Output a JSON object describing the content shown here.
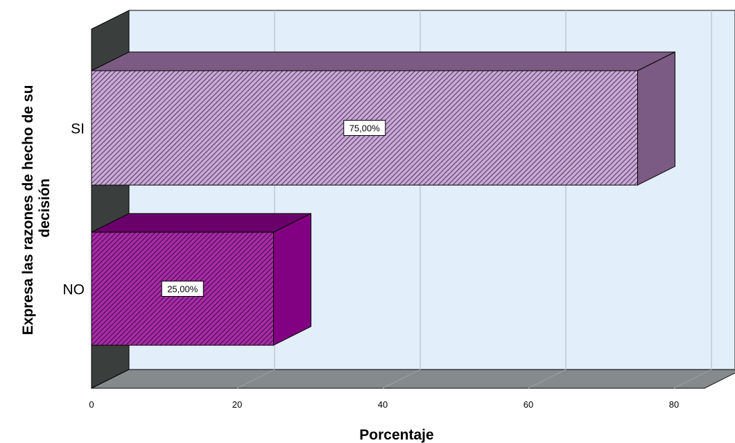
{
  "chart_data": {
    "type": "bar",
    "orientation": "horizontal",
    "style": "3d",
    "xlabel": "Porcentaje",
    "ylabel_lines": [
      "Expresa las razones de hecho de su",
      "decisión"
    ],
    "xlim": [
      0,
      80
    ],
    "xticks": [
      "0",
      "20",
      "40",
      "60",
      "80"
    ],
    "grid": true,
    "categories": [
      "SI",
      "NO"
    ],
    "values": [
      75,
      25
    ],
    "data_labels": [
      "75,00%",
      "25,00%"
    ],
    "colors": {
      "SI": {
        "front": "#c9a7d6",
        "top": "#7b5b84",
        "side": "#7b5b84"
      },
      "NO": {
        "front": "#a62ba6",
        "top": "#6a006a",
        "side": "#820082"
      },
      "plot_bg": "#e2eef9",
      "back_wall": "#3a3f3d",
      "floor": "#858b8d",
      "gridline": "#b8c0c8"
    }
  }
}
